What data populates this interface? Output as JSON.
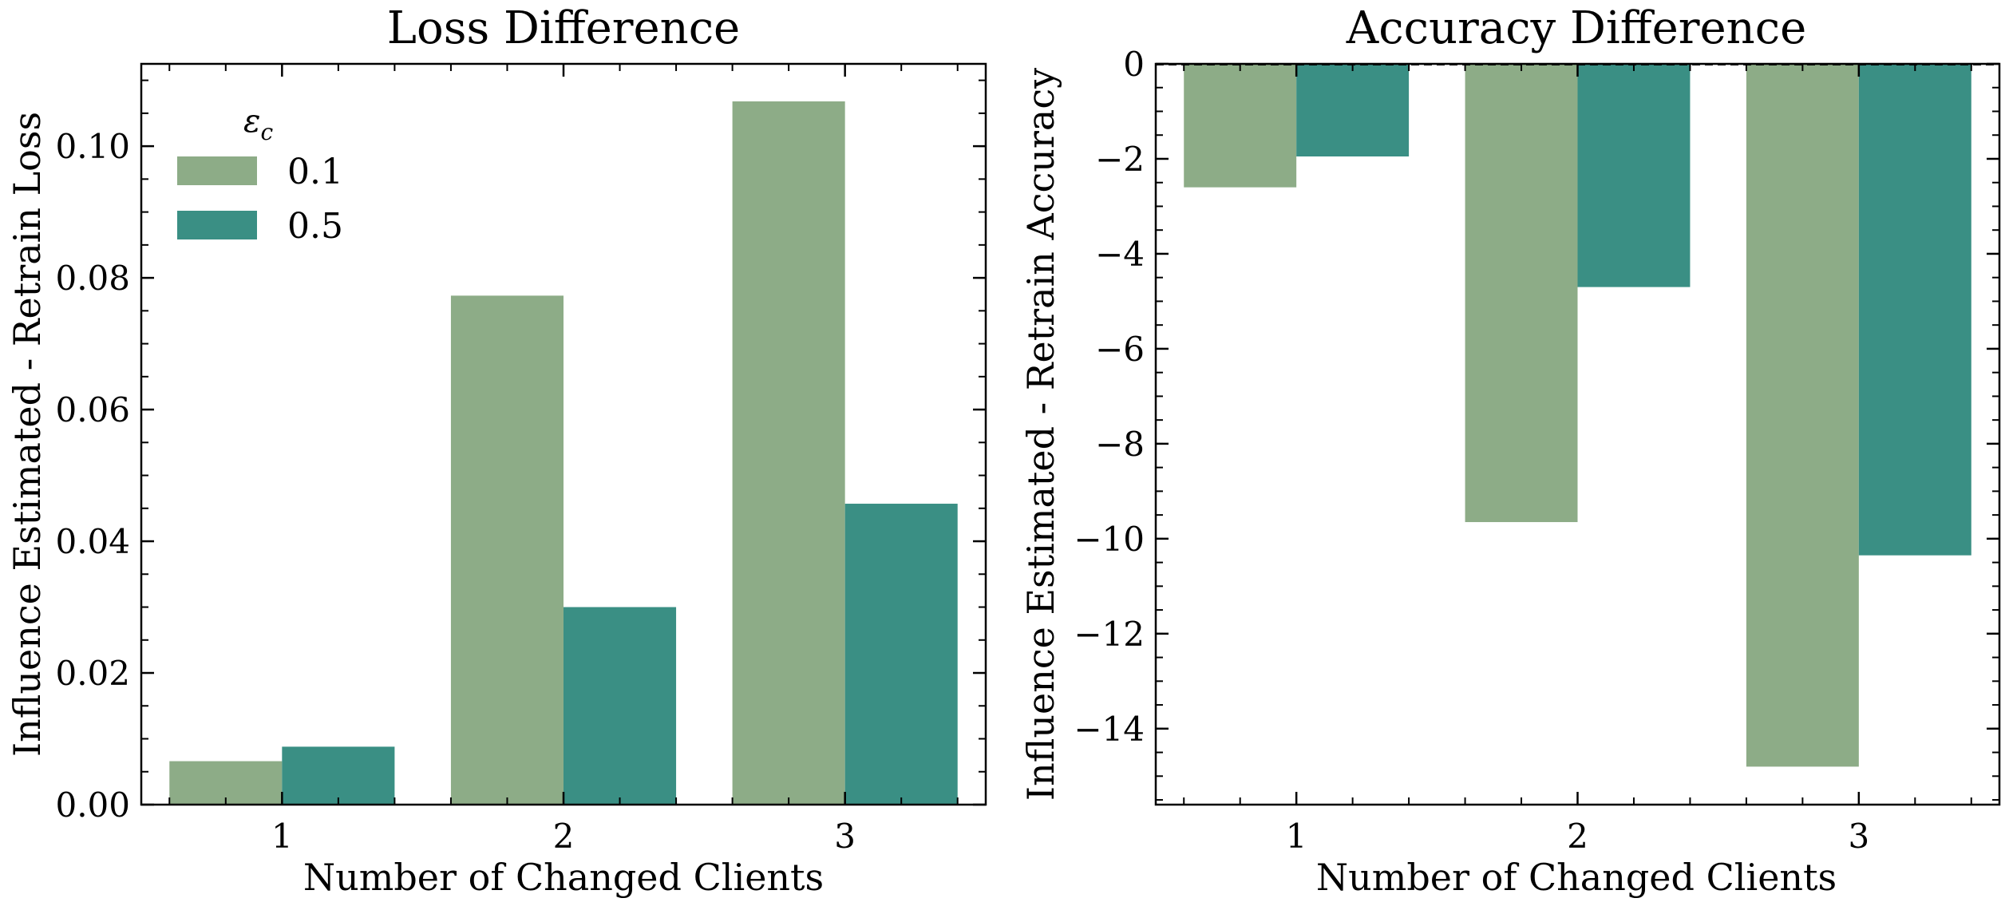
{
  "chart_data": [
    {
      "type": "bar",
      "title": "Loss Difference",
      "xlabel": "Number of Changed Clients",
      "ylabel": "Influence Estimated - Retrain Loss",
      "categories": [
        "1",
        "2",
        "3"
      ],
      "series": [
        {
          "name": "0.1",
          "color": "#8dac87",
          "values": [
            0.0066,
            0.0773,
            0.1068
          ]
        },
        {
          "name": "0.5",
          "color": "#3a8f84",
          "values": [
            0.0088,
            0.03,
            0.0457
          ]
        }
      ],
      "ylim": [
        0,
        0.1125
      ],
      "yticks": [
        0.0,
        0.02,
        0.04,
        0.06,
        0.08,
        0.1
      ],
      "ytick_labels": [
        "0.00",
        "0.02",
        "0.04",
        "0.06",
        "0.08",
        "0.10"
      ],
      "yminor_step": 0.005,
      "legend": {
        "title": "ε",
        "title_sub": "c",
        "placement": "top-left"
      }
    },
    {
      "type": "bar",
      "title": "Accuracy Difference",
      "xlabel": "Number of Changed Clients",
      "ylabel": "Influence Estimated - Retrain Accuracy",
      "categories": [
        "1",
        "2",
        "3"
      ],
      "series": [
        {
          "name": "0.1",
          "color": "#8dac87",
          "values": [
            -2.6,
            -9.65,
            -14.8
          ]
        },
        {
          "name": "0.5",
          "color": "#3a8f84",
          "values": [
            -1.95,
            -4.7,
            -10.35
          ]
        }
      ],
      "ylim": [
        -15.6,
        0
      ],
      "yticks": [
        0,
        -2,
        -4,
        -6,
        -8,
        -10,
        -12,
        -14
      ],
      "ytick_labels": [
        "0",
        "−2",
        "−4",
        "−6",
        "−8",
        "−10",
        "−12",
        "−14"
      ],
      "yminor_step": 0.5,
      "zero_line": "dashed"
    }
  ]
}
